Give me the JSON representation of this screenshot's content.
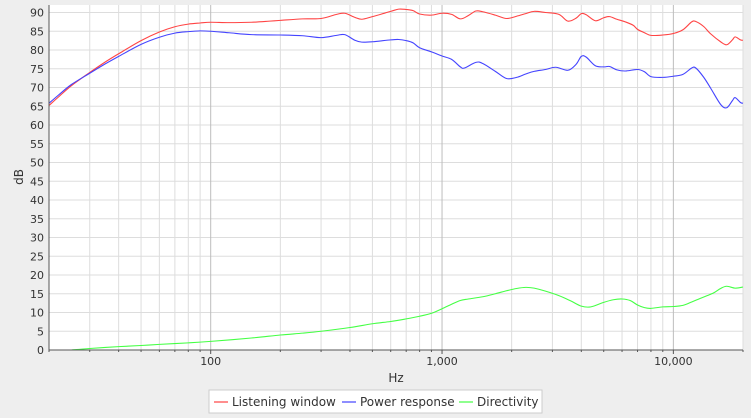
{
  "chart_data": {
    "type": "line",
    "title": "",
    "xlabel": "Hz",
    "ylabel": "dB",
    "x_scale": "log",
    "xlim": [
      20,
      20000
    ],
    "ylim": [
      0,
      92
    ],
    "grid": true,
    "legend_position": "bottom",
    "x_major_ticks": [
      {
        "value": 100,
        "label": "100"
      },
      {
        "value": 1000,
        "label": "1,000"
      },
      {
        "value": 10000,
        "label": "10,000"
      }
    ],
    "y_ticks": [
      0,
      5,
      10,
      15,
      20,
      25,
      30,
      35,
      40,
      45,
      50,
      55,
      60,
      65,
      70,
      75,
      80,
      85,
      90
    ],
    "series": [
      {
        "name": "Listening window",
        "color": "#ff4444",
        "points": [
          [
            20,
            65.2
          ],
          [
            22,
            67.5
          ],
          [
            25,
            70.5
          ],
          [
            30,
            74
          ],
          [
            35,
            76.8
          ],
          [
            40,
            79
          ],
          [
            50,
            82.5
          ],
          [
            60,
            84.8
          ],
          [
            70,
            86.2
          ],
          [
            80,
            86.9
          ],
          [
            90,
            87.2
          ],
          [
            100,
            87.4
          ],
          [
            120,
            87.3
          ],
          [
            150,
            87.4
          ],
          [
            180,
            87.7
          ],
          [
            200,
            87.9
          ],
          [
            250,
            88.3
          ],
          [
            300,
            88.4
          ],
          [
            350,
            89.5
          ],
          [
            380,
            89.8
          ],
          [
            420,
            88.7
          ],
          [
            450,
            88.2
          ],
          [
            500,
            88.9
          ],
          [
            600,
            90.3
          ],
          [
            650,
            90.9
          ],
          [
            700,
            90.8
          ],
          [
            750,
            90.5
          ],
          [
            800,
            89.6
          ],
          [
            900,
            89.3
          ],
          [
            1000,
            89.8
          ],
          [
            1100,
            89.5
          ],
          [
            1200,
            88.3
          ],
          [
            1300,
            89.2
          ],
          [
            1400,
            90.4
          ],
          [
            1500,
            90.2
          ],
          [
            1700,
            89.3
          ],
          [
            1900,
            88.4
          ],
          [
            2100,
            89
          ],
          [
            2300,
            89.7
          ],
          [
            2500,
            90.3
          ],
          [
            2800,
            90
          ],
          [
            3200,
            89.5
          ],
          [
            3500,
            87.7
          ],
          [
            3800,
            88.5
          ],
          [
            4000,
            89.7
          ],
          [
            4200,
            89.4
          ],
          [
            4600,
            87.8
          ],
          [
            5000,
            88.6
          ],
          [
            5300,
            88.9
          ],
          [
            5700,
            88.2
          ],
          [
            6200,
            87.5
          ],
          [
            6700,
            86.6
          ],
          [
            7000,
            85.5
          ],
          [
            7500,
            84.6
          ],
          [
            8000,
            83.9
          ],
          [
            9000,
            84
          ],
          [
            10000,
            84.4
          ],
          [
            11000,
            85.4
          ],
          [
            12000,
            87.5
          ],
          [
            12500,
            87.6
          ],
          [
            13500,
            86.3
          ],
          [
            14500,
            84.3
          ],
          [
            16000,
            82.2
          ],
          [
            17000,
            81.4
          ],
          [
            18000,
            82.7
          ],
          [
            18500,
            83.5
          ],
          [
            19500,
            82.7
          ],
          [
            20000,
            82.6
          ]
        ]
      },
      {
        "name": "Power response",
        "color": "#4444ff",
        "points": [
          [
            20,
            65.8
          ],
          [
            22,
            68
          ],
          [
            25,
            70.8
          ],
          [
            30,
            73.8
          ],
          [
            35,
            76.3
          ],
          [
            40,
            78.3
          ],
          [
            50,
            81.5
          ],
          [
            60,
            83.4
          ],
          [
            70,
            84.5
          ],
          [
            80,
            84.9
          ],
          [
            90,
            85.1
          ],
          [
            100,
            85
          ],
          [
            120,
            84.6
          ],
          [
            150,
            84.1
          ],
          [
            200,
            84
          ],
          [
            250,
            83.8
          ],
          [
            300,
            83.3
          ],
          [
            350,
            83.9
          ],
          [
            380,
            84.1
          ],
          [
            420,
            82.6
          ],
          [
            450,
            82.1
          ],
          [
            500,
            82.2
          ],
          [
            600,
            82.7
          ],
          [
            650,
            82.8
          ],
          [
            700,
            82.5
          ],
          [
            750,
            81.9
          ],
          [
            800,
            80.6
          ],
          [
            900,
            79.5
          ],
          [
            1000,
            78.4
          ],
          [
            1100,
            77.5
          ],
          [
            1200,
            75.5
          ],
          [
            1250,
            75.2
          ],
          [
            1400,
            76.7
          ],
          [
            1500,
            76.4
          ],
          [
            1700,
            74.3
          ],
          [
            1900,
            72.4
          ],
          [
            2100,
            72.7
          ],
          [
            2300,
            73.6
          ],
          [
            2500,
            74.3
          ],
          [
            2800,
            74.8
          ],
          [
            3100,
            75.4
          ],
          [
            3500,
            74.6
          ],
          [
            3800,
            76.2
          ],
          [
            4000,
            78.3
          ],
          [
            4200,
            78.1
          ],
          [
            4600,
            75.8
          ],
          [
            5000,
            75.5
          ],
          [
            5300,
            75.6
          ],
          [
            5700,
            74.7
          ],
          [
            6200,
            74.4
          ],
          [
            7000,
            74.8
          ],
          [
            7500,
            74.2
          ],
          [
            8000,
            72.9
          ],
          [
            9000,
            72.7
          ],
          [
            10000,
            73
          ],
          [
            11000,
            73.5
          ],
          [
            12000,
            75.2
          ],
          [
            12500,
            75.2
          ],
          [
            13500,
            72.8
          ],
          [
            14500,
            69.8
          ],
          [
            16000,
            65.5
          ],
          [
            17000,
            64.6
          ],
          [
            18000,
            66.5
          ],
          [
            18500,
            67.3
          ],
          [
            19500,
            66
          ],
          [
            20000,
            65.8
          ]
        ]
      },
      {
        "name": "Directivity",
        "color": "#44ff44",
        "points": [
          [
            25,
            0
          ],
          [
            30,
            0.4
          ],
          [
            40,
            0.9
          ],
          [
            50,
            1.2
          ],
          [
            60,
            1.5
          ],
          [
            80,
            1.9
          ],
          [
            100,
            2.3
          ],
          [
            150,
            3.2
          ],
          [
            200,
            4
          ],
          [
            250,
            4.5
          ],
          [
            300,
            5
          ],
          [
            400,
            6
          ],
          [
            500,
            7
          ],
          [
            600,
            7.6
          ],
          [
            700,
            8.3
          ],
          [
            800,
            9
          ],
          [
            900,
            9.8
          ],
          [
            1000,
            11
          ],
          [
            1100,
            12.2
          ],
          [
            1200,
            13.2
          ],
          [
            1300,
            13.6
          ],
          [
            1500,
            14.2
          ],
          [
            1700,
            15
          ],
          [
            1900,
            15.8
          ],
          [
            2100,
            16.4
          ],
          [
            2300,
            16.7
          ],
          [
            2500,
            16.5
          ],
          [
            2800,
            15.7
          ],
          [
            3200,
            14.5
          ],
          [
            3600,
            13.1
          ],
          [
            4000,
            11.7
          ],
          [
            4400,
            11.5
          ],
          [
            5000,
            12.7
          ],
          [
            5500,
            13.4
          ],
          [
            6000,
            13.6
          ],
          [
            6500,
            13.2
          ],
          [
            7000,
            12
          ],
          [
            7500,
            11.3
          ],
          [
            8000,
            11.1
          ],
          [
            9000,
            11.5
          ],
          [
            10000,
            11.6
          ],
          [
            11000,
            11.9
          ],
          [
            12000,
            12.8
          ],
          [
            13000,
            13.7
          ],
          [
            14000,
            14.5
          ],
          [
            15000,
            15.3
          ],
          [
            16000,
            16.4
          ],
          [
            17000,
            17
          ],
          [
            18500,
            16.5
          ],
          [
            20000,
            16.8
          ]
        ]
      }
    ]
  }
}
